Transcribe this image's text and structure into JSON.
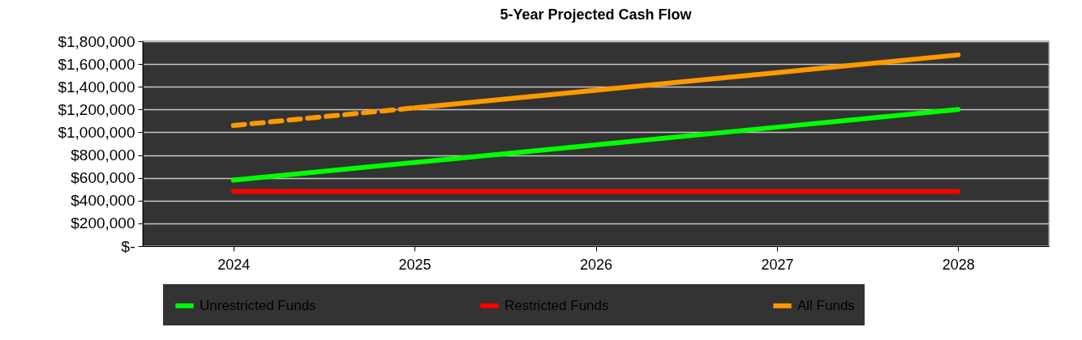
{
  "chart_data": {
    "type": "line",
    "title": "5-Year Projected Cash Flow",
    "categories": [
      "2024",
      "2025",
      "2026",
      "2027",
      "2028"
    ],
    "series": [
      {
        "name": "Unrestricted Funds",
        "color": "#00ff00",
        "values": [
          580000,
          735000,
          890000,
          1045000,
          1200000
        ]
      },
      {
        "name": "Restricted Funds",
        "color": "#ff0000",
        "values": [
          480000,
          480000,
          480000,
          480000,
          480000
        ]
      },
      {
        "name": "All Funds",
        "color": "#ff9900",
        "values": [
          null,
          1215000,
          1370000,
          1525000,
          1680000
        ]
      },
      {
        "color": "#ff9900",
        "line_style": "dashed",
        "values": [
          1060000,
          1215000,
          null,
          null,
          null
        ]
      }
    ],
    "ylim": [
      0,
      1800000
    ],
    "yticks": [
      {
        "value": 0,
        "label": "$-"
      },
      {
        "value": 200000,
        "label": "$200,000"
      },
      {
        "value": 400000,
        "label": "$400,000"
      },
      {
        "value": 600000,
        "label": "$600,000"
      },
      {
        "value": 800000,
        "label": "$800,000"
      },
      {
        "value": 1000000,
        "label": "$1,000,000"
      },
      {
        "value": 1200000,
        "label": "$1,200,000"
      },
      {
        "value": 1400000,
        "label": "$1,400,000"
      },
      {
        "value": 1600000,
        "label": "$1,600,000"
      },
      {
        "value": 1800000,
        "label": "$1,800,000"
      }
    ],
    "grid": "y",
    "legend": "bottom",
    "line_style": "solid",
    "marker": "none"
  }
}
